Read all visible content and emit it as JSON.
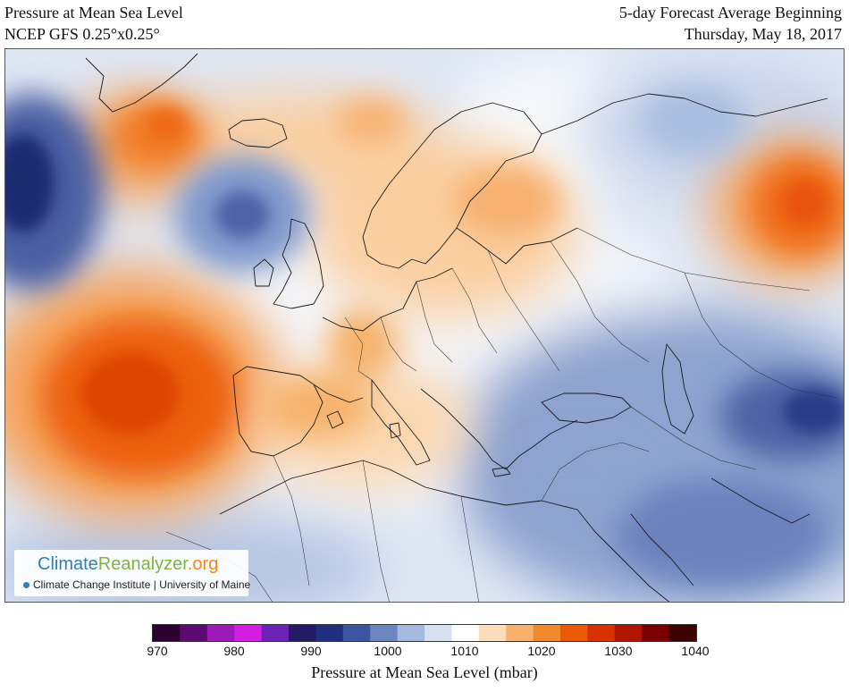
{
  "header": {
    "title_left_line1": "Pressure at Mean Sea Level",
    "title_left_line2": "NCEP GFS 0.25°x0.25°",
    "title_right_line1": "5-day Forecast Average Beginning",
    "title_right_line2": "Thursday, May 18, 2017"
  },
  "logo": {
    "name_part1": "Climate",
    "name_part2": "Reanalyzer",
    "name_part3": ".org",
    "subtitle": "Climate Change Institute | University of Maine"
  },
  "colorbar": {
    "title": "Pressure at Mean Sea Level (mbar)",
    "labels": [
      "970",
      "980",
      "990",
      "1000",
      "1010",
      "1020",
      "1030",
      "1040"
    ],
    "colors": [
      "#2b0030",
      "#5a0a70",
      "#9c1ab5",
      "#d21ee0",
      "#6a23b5",
      "#241a66",
      "#20307e",
      "#3c55a0",
      "#6d85be",
      "#a5b8dd",
      "#d6e0f0",
      "#ffffff",
      "#fbdcbc",
      "#f6b26c",
      "#f08a2d",
      "#ea5a06",
      "#d83100",
      "#b01500",
      "#7a0000",
      "#3d0000"
    ]
  },
  "features": {
    "high_atlantic": "high-pressure-atlantic",
    "high_scandinavia": "high-pressure-scandinavia",
    "high_siberia": "high-pressure-siberia",
    "high_greenland": "high-pressure-greenland",
    "low_atlantic_west": "low-pressure-west-atlantic",
    "low_iceland": "low-pressure-north-atlantic",
    "low_middle_east": "low-pressure-middle-east"
  }
}
